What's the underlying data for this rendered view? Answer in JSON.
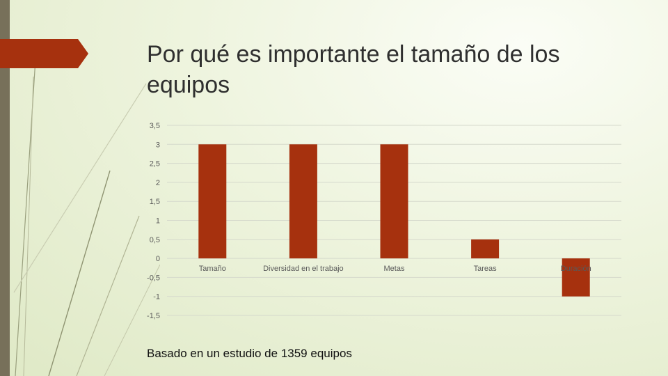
{
  "slide": {
    "title": "Por qué es importante el tamaño de los equipos",
    "footnote": "Basado en un estudio de 1359 equipos"
  },
  "colors": {
    "bar": "#a6310e",
    "accent": "#a6310e",
    "sidebar": "#77705a",
    "grid": "#d5d9cc",
    "label": "#595959"
  },
  "chart_data": {
    "type": "bar",
    "categories": [
      "Tamaño",
      "Diversidad en el trabajo",
      "Metas",
      "Tareas",
      "Duración"
    ],
    "values": [
      3,
      3,
      3,
      0.5,
      -1
    ],
    "ylim": [
      -1.5,
      3.5
    ],
    "yticks": [
      3.5,
      3,
      2.5,
      2,
      1.5,
      1,
      0.5,
      0,
      -0.5,
      -1,
      -1.5
    ],
    "ytick_labels": [
      "3,5",
      "3",
      "2,5",
      "2",
      "1,5",
      "1",
      "0,5",
      "0",
      "-0,5",
      "-1",
      "-1,5"
    ],
    "grid": true,
    "legend": "none"
  }
}
